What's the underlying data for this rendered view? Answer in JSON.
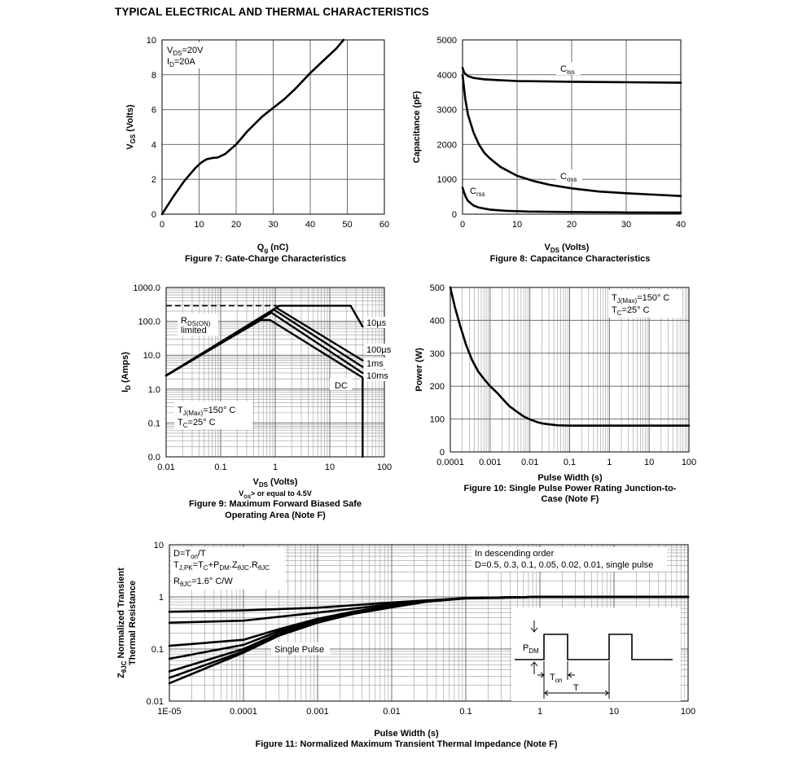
{
  "page_title": "TYPICAL ELECTRICAL AND THERMAL CHARACTERISTICS",
  "chart_data": [
    {
      "id": "fig7",
      "type": "line",
      "caption": "Figure 7: Gate-Charge Characteristics",
      "xlabel": {
        "main": "Q",
        "sub": "g",
        "rest": " (nC)"
      },
      "ylabel": {
        "main": "V",
        "sub": "GS",
        "rest": " (Volts)"
      },
      "xlim": [
        0,
        60
      ],
      "ylim": [
        0,
        10
      ],
      "xticks": [
        0,
        10,
        20,
        30,
        40,
        50,
        60
      ],
      "yticks": [
        0,
        2,
        4,
        6,
        8,
        10
      ],
      "grid": true,
      "annotations": [
        {
          "main": "V",
          "sub": "DS",
          "rest": "=20V"
        },
        {
          "main": "I",
          "sub": "D",
          "rest": "=20A"
        }
      ],
      "series": [
        {
          "x": [
            0,
            3,
            6,
            9,
            10.5,
            12,
            13.5,
            15,
            17,
            20,
            23,
            27,
            30,
            33,
            36,
            40,
            44,
            47,
            49
          ],
          "y": [
            0,
            1,
            1.9,
            2.65,
            2.95,
            3.15,
            3.22,
            3.25,
            3.45,
            4.0,
            4.75,
            5.6,
            6.1,
            6.6,
            7.2,
            8.1,
            8.9,
            9.5,
            10
          ]
        }
      ]
    },
    {
      "id": "fig8",
      "type": "line",
      "caption": "Figure 8: Capacitance Characteristics",
      "xlabel": {
        "main": "V",
        "sub": "DS",
        "rest": " (Volts)"
      },
      "ylabel": {
        "main": "Capacitance (pF)",
        "sub": "",
        "rest": ""
      },
      "xlim": [
        0,
        40
      ],
      "ylim": [
        0,
        5000
      ],
      "xticks": [
        0,
        10,
        20,
        30,
        40
      ],
      "yticks": [
        0,
        1000,
        2000,
        3000,
        4000,
        5000
      ],
      "grid": true,
      "series": [
        {
          "name": "Ciss",
          "label": {
            "main": "C",
            "sub": "iss"
          },
          "x": [
            0,
            0.3,
            1,
            2,
            4,
            7,
            10,
            15,
            20,
            30,
            40
          ],
          "y": [
            4200,
            4060,
            3960,
            3910,
            3870,
            3840,
            3820,
            3810,
            3800,
            3785,
            3770
          ]
        },
        {
          "name": "Coss",
          "label": {
            "main": "C",
            "sub": "oss"
          },
          "x": [
            0,
            0.5,
            1,
            2,
            3,
            4,
            5,
            7,
            10,
            13,
            16,
            20,
            25,
            30,
            35,
            40
          ],
          "y": [
            4000,
            3300,
            2850,
            2350,
            2000,
            1760,
            1600,
            1350,
            1100,
            950,
            840,
            740,
            650,
            600,
            560,
            520
          ]
        },
        {
          "name": "Crss",
          "label": {
            "main": "C",
            "sub": "rss"
          },
          "x": [
            0,
            0.5,
            1,
            2,
            3,
            5,
            8,
            12,
            20,
            30,
            40
          ],
          "y": [
            760,
            520,
            380,
            250,
            190,
            130,
            95,
            75,
            60,
            50,
            45
          ]
        }
      ]
    },
    {
      "id": "fig9",
      "type": "line",
      "caption_lines": [
        "Figure 9: Maximum Forward Biased Safe",
        "Operating Area (Note F)"
      ],
      "note": {
        "main": "V",
        "sub": "GS",
        "rest": "> or equal to 4.5V"
      },
      "xlabel": {
        "main": "V",
        "sub": "DS",
        "rest": " (Volts)"
      },
      "ylabel": {
        "main": "I",
        "sub": "D",
        "rest": " (Amps)"
      },
      "xscale": "log",
      "yscale": "log",
      "xlim": [
        0.01,
        100
      ],
      "ylim": [
        0.01,
        1000
      ],
      "xticks": [
        0.01,
        0.1,
        1,
        10,
        100
      ],
      "xtick_labels": [
        "0.01",
        "0.1",
        "1",
        "10",
        "100"
      ],
      "yticks": [
        0.01,
        0.1,
        1,
        10,
        100,
        1000
      ],
      "ytick_labels": [
        "0.0",
        "0.1",
        "1.0",
        "10.0",
        "100.0",
        "1000.0"
      ],
      "grid": true,
      "rds_label": {
        "main": "R",
        "sub": "DS(ON)",
        "line2": "limited"
      },
      "annotations": [
        {
          "main": "T",
          "sub": "J(Max)",
          "rest": "=150° C"
        },
        {
          "main": "T",
          "sub": "C",
          "rest": "=25° C"
        }
      ],
      "series": [
        {
          "name": "10µs",
          "label": "10µs",
          "x": [
            0.01,
            1.2,
            24,
            40
          ],
          "y": [
            2.5,
            290,
            290,
            70
          ]
        },
        {
          "name": "100µs",
          "label": "100µs",
          "x": [
            0.01,
            1.05,
            40
          ],
          "y": [
            2.5,
            250,
            7
          ]
        },
        {
          "name": "1ms",
          "label": "1ms",
          "x": [
            0.01,
            0.95,
            40
          ],
          "y": [
            2.5,
            220,
            4.5
          ]
        },
        {
          "name": "10ms",
          "label": "10ms",
          "x": [
            0.01,
            0.85,
            40
          ],
          "y": [
            2.5,
            180,
            3
          ]
        },
        {
          "name": "DC",
          "label": "DC",
          "x": [
            0.01,
            0.55,
            0.8,
            40,
            40
          ],
          "y": [
            2.5,
            110,
            110,
            2.2,
            0.01
          ]
        }
      ],
      "limit_line": {
        "x": [
          0.01,
          1.1
        ],
        "y": [
          290,
          290
        ]
      }
    },
    {
      "id": "fig10",
      "type": "line",
      "caption_lines": [
        "Figure 10: Single Pulse Power Rating Junction-to-",
        "Case (Note F)"
      ],
      "xlabel": {
        "main": "Pulse Width (s)",
        "sub": "",
        "rest": ""
      },
      "ylabel": {
        "main": "Power (W)",
        "sub": "",
        "rest": ""
      },
      "xscale": "log",
      "xlim": [
        0.0001,
        100
      ],
      "ylim": [
        0,
        500
      ],
      "xticks": [
        0.0001,
        0.001,
        0.01,
        0.1,
        1,
        10,
        100
      ],
      "xtick_labels": [
        "0.0001",
        "0.001",
        "0.01",
        "0.1",
        "1",
        "10",
        "100"
      ],
      "yticks": [
        0,
        100,
        200,
        300,
        400,
        500
      ],
      "grid": true,
      "annotations": [
        {
          "main": "T",
          "sub": "J(Max)",
          "rest": "=150° C"
        },
        {
          "main": "T",
          "sub": "C",
          "rest": "=25° C"
        }
      ],
      "series": [
        {
          "x": [
            0.0001,
            0.00013,
            0.00018,
            0.00025,
            0.00035,
            0.0005,
            0.0007,
            0.001,
            0.0015,
            0.002,
            0.003,
            0.005,
            0.007,
            0.01,
            0.015,
            0.02,
            0.03,
            0.05,
            0.1,
            1,
            10,
            100
          ],
          "y": [
            500,
            440,
            380,
            325,
            280,
            245,
            222,
            200,
            180,
            163,
            140,
            120,
            108,
            99,
            91,
            87,
            84,
            81,
            80,
            80,
            80,
            80
          ]
        }
      ]
    },
    {
      "id": "fig11",
      "type": "line",
      "caption": "Figure 11: Normalized Maximum Transient Thermal Impedance (Note F)",
      "xlabel": {
        "main": "Pulse Width (s)",
        "sub": "",
        "rest": ""
      },
      "ylabel_lines": [
        {
          "main": "Z",
          "sub": "θJC",
          "rest": " Normalized Transient"
        },
        {
          "main": "Thermal Resistance",
          "sub": "",
          "rest": ""
        }
      ],
      "xscale": "log",
      "yscale": "log",
      "xlim": [
        1e-05,
        100
      ],
      "ylim": [
        0.01,
        10
      ],
      "xticks": [
        1e-05,
        0.0001,
        0.001,
        0.01,
        0.1,
        1,
        10,
        100
      ],
      "xtick_labels": [
        "1E-05",
        "0.0001",
        "0.001",
        "0.01",
        "0.1",
        "1",
        "10",
        "100"
      ],
      "yticks": [
        0.01,
        0.1,
        1,
        10
      ],
      "ytick_labels": [
        "0.01",
        "0.1",
        "1",
        "10"
      ],
      "grid": true,
      "notes_left": [
        {
          "main": "D=T",
          "sub": "on",
          "rest": "/T"
        },
        {
          "main": "T",
          "sub": "J,PK",
          "rest": "=T",
          "sub2": "C",
          "rest2": "+P",
          "sub3": "DM",
          "rest3": ".Z",
          "sub4": "θJC",
          "rest4": ".R",
          "sub5": "θJC"
        },
        {
          "main": "R",
          "sub": "θJC",
          "rest": "=1.6° C/W"
        }
      ],
      "notes_right": [
        "In descending order",
        "D=0.5, 0.3, 0.1, 0.05, 0.02, 0.01, single pulse"
      ],
      "single_pulse_label": "Single Pulse",
      "inset": {
        "pdm": {
          "main": "P",
          "sub": "DM"
        },
        "ton": {
          "main": "T",
          "sub": "on"
        },
        "t": "T"
      },
      "series": [
        {
          "name": "D=0.5",
          "x": [
            1e-05,
            0.0001,
            0.001,
            0.01,
            0.1,
            1,
            100
          ],
          "y": [
            0.52,
            0.55,
            0.62,
            0.78,
            0.95,
            1.0,
            1.0
          ]
        },
        {
          "name": "D=0.3",
          "x": [
            1e-05,
            0.0001,
            0.001,
            0.01,
            0.1,
            1,
            100
          ],
          "y": [
            0.32,
            0.35,
            0.5,
            0.72,
            0.93,
            1.0,
            1.0
          ]
        },
        {
          "name": "D=0.1",
          "x": [
            1e-05,
            0.0001,
            0.0003,
            0.001,
            0.003,
            0.01,
            0.03,
            0.1,
            1,
            100
          ],
          "y": [
            0.115,
            0.15,
            0.24,
            0.38,
            0.52,
            0.68,
            0.84,
            0.95,
            1.0,
            1.0
          ]
        },
        {
          "name": "D=0.05",
          "x": [
            1e-05,
            0.0001,
            0.0003,
            0.001,
            0.003,
            0.01,
            0.03,
            0.1,
            1,
            100
          ],
          "y": [
            0.065,
            0.12,
            0.22,
            0.36,
            0.5,
            0.66,
            0.83,
            0.95,
            1.0,
            1.0
          ]
        },
        {
          "name": "D=0.02",
          "x": [
            1e-05,
            0.0001,
            0.0003,
            0.001,
            0.003,
            0.01,
            0.03,
            0.1,
            1,
            100
          ],
          "y": [
            0.037,
            0.1,
            0.2,
            0.34,
            0.49,
            0.65,
            0.82,
            0.95,
            1.0,
            1.0
          ]
        },
        {
          "name": "D=0.01",
          "x": [
            1e-05,
            0.0001,
            0.0003,
            0.001,
            0.003,
            0.01,
            0.03,
            0.1,
            1,
            100
          ],
          "y": [
            0.028,
            0.09,
            0.19,
            0.33,
            0.48,
            0.64,
            0.82,
            0.95,
            1.0,
            1.0
          ]
        },
        {
          "name": "single pulse",
          "x": [
            1e-05,
            0.0001,
            0.0003,
            0.001,
            0.003,
            0.01,
            0.03,
            0.1,
            1,
            100
          ],
          "y": [
            0.022,
            0.085,
            0.18,
            0.32,
            0.47,
            0.63,
            0.81,
            0.95,
            1.0,
            1.0
          ]
        }
      ]
    }
  ]
}
